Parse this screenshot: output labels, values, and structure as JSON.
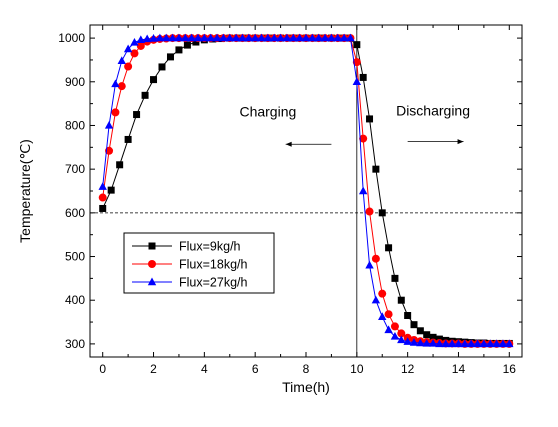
{
  "chart_data": {
    "type": "line",
    "xlabel": "Time(h)",
    "ylabel": "Temperature(℃)",
    "xlim": [
      -0.5,
      16.5
    ],
    "ylim": [
      270,
      1030
    ],
    "xticks": [
      0,
      2,
      4,
      6,
      8,
      10,
      12,
      14,
      16
    ],
    "yticks": [
      300,
      400,
      500,
      600,
      700,
      800,
      900,
      1000
    ],
    "xtick_labels": [
      "0",
      "2",
      "4",
      "6",
      "8",
      "10",
      "12",
      "14",
      "16"
    ],
    "ytick_labels": [
      "300",
      "400",
      "500",
      "600",
      "700",
      "800",
      "900",
      "1000"
    ],
    "grid": false,
    "legend_position": "lower-left",
    "reference_lines": [
      {
        "orientation": "horizontal",
        "value": 600,
        "style": "dashed"
      },
      {
        "orientation": "vertical",
        "value": 10,
        "style": "solid"
      }
    ],
    "annotations": [
      {
        "text": "Charging",
        "x": 6.5,
        "y": 820,
        "arrow_from": 9.0,
        "arrow_to": 7.2,
        "arrow_y": 757
      },
      {
        "text": "Discharging",
        "x": 13.0,
        "y": 823,
        "arrow_from": 12.0,
        "arrow_to": 14.2,
        "arrow_y": 763
      }
    ],
    "series": [
      {
        "name": "Flux=9kg/h",
        "color": "#000000",
        "marker": "square",
        "x": [
          0,
          0.333,
          0.667,
          1,
          1.333,
          1.667,
          2,
          2.333,
          2.667,
          3,
          3.333,
          3.667,
          4,
          4.333,
          4.667,
          5,
          5.333,
          5.667,
          6,
          6.333,
          6.667,
          7,
          7.333,
          7.667,
          8,
          8.333,
          8.667,
          9,
          9.333,
          9.667,
          10,
          10.25,
          10.5,
          10.75,
          11,
          11.25,
          11.5,
          11.75,
          12,
          12.25,
          12.5,
          12.75,
          13,
          13.25,
          13.5,
          13.75,
          14,
          14.25,
          14.5,
          14.75,
          15,
          15.25,
          15.5,
          15.75,
          16
        ],
        "y": [
          610,
          652,
          710,
          768,
          825,
          869,
          905,
          934,
          957,
          973,
          984,
          991,
          996,
          998,
          999,
          1000,
          1000,
          1000,
          1000,
          1000,
          1000,
          1000,
          1000,
          1000,
          1000,
          1000,
          1000,
          1000,
          1000,
          1000,
          985,
          910,
          815,
          700,
          600,
          520,
          450,
          400,
          365,
          344,
          330,
          321,
          315,
          311,
          308,
          306,
          305,
          304,
          303,
          302,
          302,
          301,
          301,
          301,
          301
        ]
      },
      {
        "name": "Flux=18kg/h",
        "color": "#ff0000",
        "marker": "circle",
        "x": [
          0,
          0.25,
          0.5,
          0.75,
          1,
          1.25,
          1.5,
          1.75,
          2,
          2.25,
          2.5,
          2.75,
          3,
          3.25,
          3.5,
          3.75,
          4,
          4.25,
          4.5,
          4.75,
          5,
          5.25,
          5.5,
          5.75,
          6,
          6.25,
          6.5,
          6.75,
          7,
          7.25,
          7.5,
          7.75,
          8,
          8.25,
          8.5,
          8.75,
          9,
          9.25,
          9.5,
          9.75,
          10,
          10.25,
          10.5,
          10.75,
          11,
          11.25,
          11.5,
          11.75,
          12,
          12.25,
          12.5,
          12.75,
          13,
          13.25,
          13.5,
          13.75,
          14,
          14.25,
          14.5,
          14.75,
          15,
          15.25,
          15.5,
          15.75,
          16
        ],
        "y": [
          635,
          742,
          830,
          890,
          935,
          965,
          982,
          992,
          996,
          998,
          999,
          1000,
          1000,
          1000,
          1000,
          1000,
          1000,
          1000,
          1000,
          1000,
          1000,
          1000,
          1000,
          1000,
          1000,
          1000,
          1000,
          1000,
          1000,
          1000,
          1000,
          1000,
          1000,
          1000,
          1000,
          1000,
          1000,
          1000,
          1000,
          1000,
          945,
          770,
          603,
          495,
          415,
          368,
          340,
          324,
          314,
          309,
          306,
          304,
          303,
          302,
          301,
          301,
          301,
          300,
          300,
          300,
          300,
          300,
          300,
          300,
          300
        ]
      },
      {
        "name": "Flux=27kg/h",
        "color": "#0000ff",
        "marker": "triangle",
        "x": [
          0,
          0.25,
          0.5,
          0.75,
          1,
          1.25,
          1.5,
          1.75,
          2,
          2.25,
          2.5,
          2.75,
          3,
          3.25,
          3.5,
          3.75,
          4,
          4.25,
          4.5,
          4.75,
          5,
          5.25,
          5.5,
          5.75,
          6,
          6.25,
          6.5,
          6.75,
          7,
          7.25,
          7.5,
          7.75,
          8,
          8.25,
          8.5,
          8.75,
          9,
          9.25,
          9.5,
          9.75,
          10,
          10.25,
          10.5,
          10.75,
          11,
          11.25,
          11.5,
          11.75,
          12,
          12.25,
          12.5,
          12.75,
          13,
          13.25,
          13.5,
          13.75,
          14,
          14.25,
          14.5,
          14.75,
          15,
          15.25,
          15.5,
          15.75,
          16
        ],
        "y": [
          660,
          800,
          895,
          948,
          975,
          990,
          996,
          998,
          999,
          1000,
          1000,
          1000,
          1000,
          1000,
          1000,
          1000,
          1000,
          1000,
          1000,
          1000,
          1000,
          1000,
          1000,
          1000,
          1000,
          1000,
          1000,
          1000,
          1000,
          1000,
          1000,
          1000,
          1000,
          1000,
          1000,
          1000,
          1000,
          1000,
          1000,
          1000,
          900,
          650,
          480,
          400,
          362,
          332,
          317,
          309,
          305,
          303,
          302,
          301,
          301,
          300,
          300,
          300,
          300,
          300,
          300,
          300,
          300,
          300,
          300,
          300,
          300
        ]
      }
    ]
  }
}
